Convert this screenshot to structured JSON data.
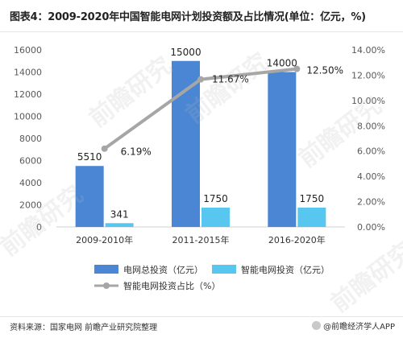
{
  "header": {
    "title": "图表4：2009-2020年中国智能电网计划投资额及占比情况(单位：亿元，%)"
  },
  "footer": {
    "source": "资料来源：国家电网 前瞻产业研究院整理",
    "brand": "@前瞻经济学人APP"
  },
  "colors": {
    "total_bar": "#4a86d3",
    "smart_bar": "#57c7ef",
    "ratio_line": "#a6a6a6",
    "axis_text": "#595959"
  },
  "chart_data": {
    "type": "bar",
    "categories": [
      "2009-2010年",
      "2011-2015年",
      "2016-2020年"
    ],
    "series": [
      {
        "name": "电网总投资（亿元）",
        "type": "bar",
        "axis": "left",
        "values": [
          5510,
          15000,
          14000
        ],
        "labels": [
          "5510",
          "15000",
          "14000"
        ]
      },
      {
        "name": "智能电网投资（亿元）",
        "type": "bar",
        "axis": "left",
        "values": [
          341,
          1750,
          1750
        ],
        "labels": [
          "341",
          "1750",
          "1750"
        ]
      },
      {
        "name": "智能电网投资占比（%）",
        "type": "line",
        "axis": "right",
        "values": [
          6.19,
          11.67,
          12.5
        ],
        "labels": [
          "6.19%",
          "11.67%",
          "12.50%"
        ]
      }
    ],
    "y_left": {
      "ylim": [
        0,
        16000
      ],
      "ticks": [
        "0",
        "2000",
        "4000",
        "6000",
        "8000",
        "10000",
        "12000",
        "14000",
        "16000"
      ]
    },
    "y_right": {
      "ylim": [
        0,
        14
      ],
      "ticks": [
        "0.00%",
        "2.00%",
        "4.00%",
        "6.00%",
        "8.00%",
        "10.00%",
        "12.00%",
        "14.00%"
      ]
    },
    "grid": false,
    "legend_position": "bottom"
  }
}
